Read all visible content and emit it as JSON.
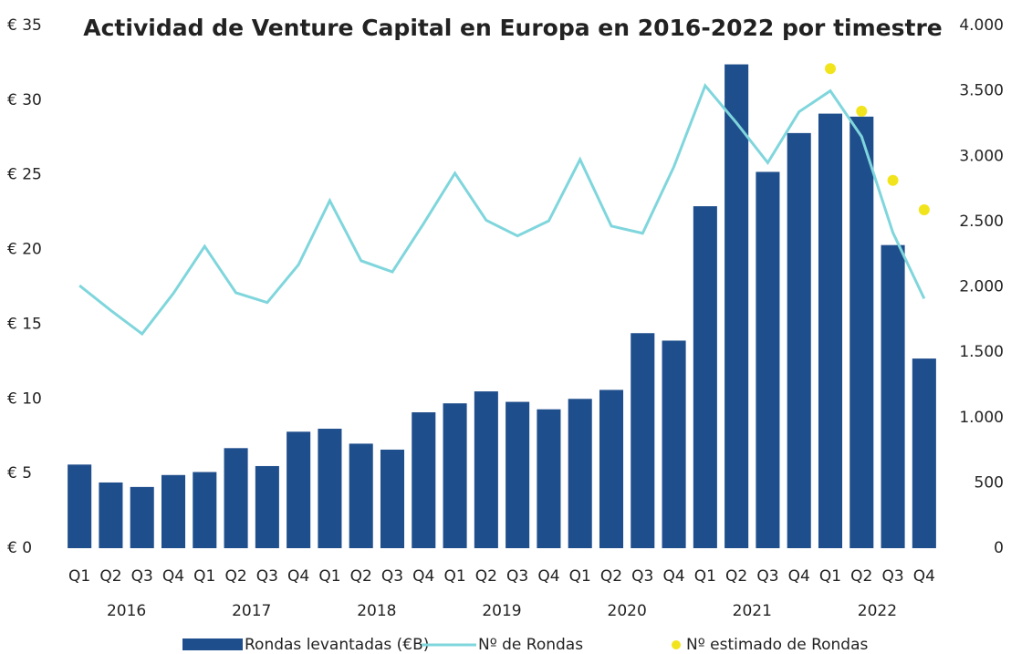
{
  "chart_data": {
    "type": "bar",
    "title": "Actividad de Venture Capital en Europa en 2016-2022 por timestre",
    "categories": [
      "Q1",
      "Q2",
      "Q3",
      "Q4",
      "Q1",
      "Q2",
      "Q3",
      "Q4",
      "Q1",
      "Q2",
      "Q3",
      "Q4",
      "Q1",
      "Q2",
      "Q3",
      "Q4",
      "Q1",
      "Q2",
      "Q3",
      "Q4",
      "Q1",
      "Q2",
      "Q3",
      "Q4",
      "Q1",
      "Q2",
      "Q3",
      "Q4"
    ],
    "years": [
      "2016",
      "2017",
      "2018",
      "2019",
      "2020",
      "2021",
      "2022"
    ],
    "series": [
      {
        "name": "Rondas levantadas (€B)",
        "type": "bar",
        "color": "#1f4e8c",
        "values": [
          5.6,
          4.4,
          4.1,
          4.9,
          5.1,
          6.7,
          5.5,
          7.8,
          8.0,
          7.0,
          6.6,
          9.1,
          9.7,
          10.5,
          9.8,
          9.3,
          10.0,
          10.6,
          14.4,
          13.9,
          22.9,
          32.4,
          25.2,
          27.8,
          29.1,
          28.9,
          20.3,
          12.7
        ]
      },
      {
        "name": "Nº de Rondas",
        "type": "line",
        "axis": "y2",
        "color": "#7fd6dc",
        "values": [
          2010,
          1820,
          1640,
          1950,
          2310,
          1955,
          1880,
          2170,
          2660,
          2200,
          2115,
          2485,
          2870,
          2510,
          2390,
          2505,
          2975,
          2465,
          2410,
          2920,
          3540,
          3255,
          2950,
          3340,
          3500,
          3150,
          2415,
          1910
        ]
      },
      {
        "name": "Nº estimado de Rondas",
        "type": "scatter",
        "axis": "y2",
        "color": "#f2e41c",
        "values": [
          null,
          null,
          null,
          null,
          null,
          null,
          null,
          null,
          null,
          null,
          null,
          null,
          null,
          null,
          null,
          null,
          null,
          null,
          null,
          null,
          null,
          null,
          null,
          null,
          3670,
          3345,
          2815,
          2590
        ]
      }
    ],
    "ylim": [
      0,
      35
    ],
    "yticks": [
      {
        "value": 0,
        "label": "€ 0"
      },
      {
        "value": 5,
        "label": "€ 5"
      },
      {
        "value": 10,
        "label": "€ 10"
      },
      {
        "value": 15,
        "label": "€ 15"
      },
      {
        "value": 20,
        "label": "€ 20"
      },
      {
        "value": 25,
        "label": "€ 25"
      },
      {
        "value": 30,
        "label": "€ 30"
      },
      {
        "value": 35,
        "label": "€ 35"
      }
    ],
    "y2lim": [
      0,
      4000
    ],
    "y2ticks": [
      0,
      500,
      {
        "value": 1000,
        "label": "1.000"
      },
      {
        "value": 1500,
        "label": "1.500"
      },
      {
        "value": 2000,
        "label": "2.000"
      },
      {
        "value": 2500,
        "label": "2.500"
      },
      {
        "value": 3000,
        "label": "3.000"
      },
      {
        "value": 3500,
        "label": "3.500"
      },
      {
        "value": 4000,
        "label": "4.000"
      }
    ],
    "grid": false
  }
}
